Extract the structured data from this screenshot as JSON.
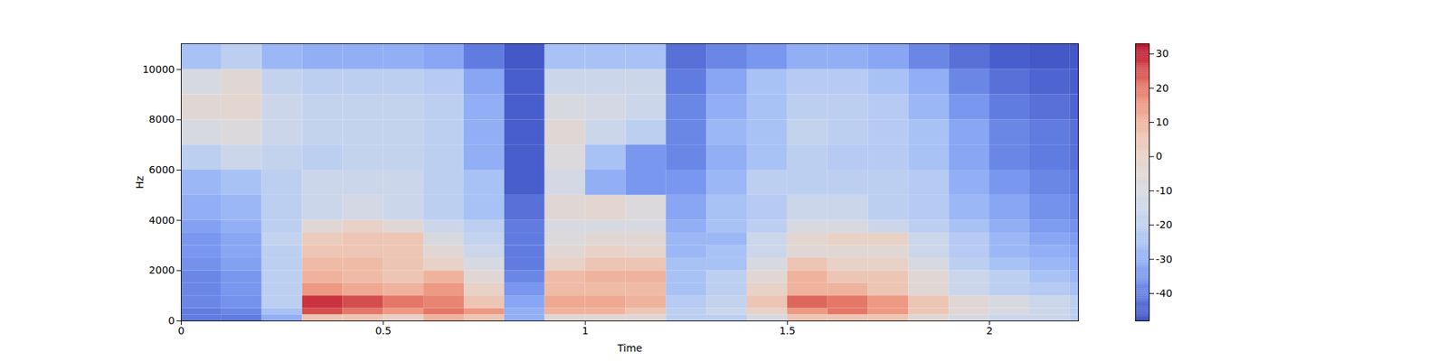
{
  "chart_data": {
    "type": "heatmap",
    "x_label": "Time",
    "y_label": "Hz",
    "xlim": [
      0,
      2.22
    ],
    "ylim": [
      0,
      11025
    ],
    "xticks": [
      0,
      0.5,
      1,
      1.5,
      2
    ],
    "yticks": [
      0,
      2000,
      4000,
      6000,
      8000,
      10000
    ],
    "x_edges": [
      0,
      0.1,
      0.2,
      0.3,
      0.4,
      0.5,
      0.6,
      0.7,
      0.8,
      0.9,
      1.0,
      1.1,
      1.2,
      1.3,
      1.4,
      1.5,
      1.6,
      1.7,
      1.8,
      1.9,
      2.0,
      2.1,
      2.2,
      2.22
    ],
    "y_edges": [
      0,
      250,
      500,
      1000,
      1500,
      2000,
      2500,
      3000,
      3500,
      4000,
      5000,
      6000,
      7000,
      8000,
      9000,
      10000,
      11025
    ],
    "values": [
      [
        -40,
        -40,
        -30,
        5,
        5,
        0,
        10,
        5,
        -30,
        -5,
        -5,
        -5,
        -20,
        -20,
        -10,
        5,
        5,
        5,
        -5,
        -10,
        -15,
        -15,
        -20
      ],
      [
        -40,
        -38,
        -25,
        25,
        20,
        15,
        20,
        15,
        -30,
        10,
        10,
        5,
        -20,
        -15,
        0,
        15,
        20,
        15,
        5,
        -5,
        -10,
        -15,
        -20
      ],
      [
        -38,
        -36,
        -20,
        28,
        25,
        20,
        18,
        5,
        -32,
        12,
        12,
        10,
        -22,
        -18,
        5,
        22,
        20,
        15,
        5,
        -5,
        -10,
        -15,
        -20
      ],
      [
        -38,
        -35,
        -20,
        15,
        12,
        10,
        15,
        0,
        -35,
        8,
        8,
        8,
        -25,
        -20,
        0,
        10,
        10,
        5,
        -5,
        -15,
        -20,
        -22,
        -25
      ],
      [
        -38,
        -35,
        -20,
        10,
        8,
        5,
        10,
        -5,
        -38,
        8,
        10,
        10,
        -25,
        -20,
        -5,
        10,
        5,
        5,
        -5,
        -15,
        -20,
        -25,
        -28
      ],
      [
        -36,
        -33,
        -20,
        8,
        8,
        5,
        0,
        -10,
        -40,
        0,
        5,
        5,
        -25,
        -25,
        -10,
        5,
        0,
        0,
        -10,
        -20,
        -25,
        -28,
        -30
      ],
      [
        -35,
        -32,
        -20,
        5,
        5,
        5,
        -5,
        -15,
        -40,
        -5,
        0,
        -2,
        -28,
        -25,
        -15,
        -5,
        -5,
        -5,
        -15,
        -22,
        -28,
        -30,
        -32
      ],
      [
        -35,
        -32,
        -18,
        3,
        5,
        5,
        -10,
        -18,
        -40,
        -8,
        -5,
        -5,
        -28,
        -28,
        -15,
        -3,
        0,
        0,
        -15,
        -22,
        -28,
        -32,
        -34
      ],
      [
        -33,
        -30,
        -20,
        -5,
        0,
        -5,
        -15,
        -20,
        -40,
        -10,
        -10,
        -10,
        -30,
        -25,
        -20,
        -10,
        -10,
        -15,
        -20,
        -25,
        -30,
        -34,
        -36
      ],
      [
        -30,
        -28,
        -20,
        -15,
        -12,
        -15,
        -20,
        -25,
        -42,
        -5,
        -3,
        -8,
        -32,
        -25,
        -22,
        -15,
        -15,
        -20,
        -22,
        -28,
        -32,
        -36,
        -38
      ],
      [
        -28,
        -25,
        -20,
        -15,
        -15,
        -15,
        -20,
        -25,
        -45,
        -12,
        -30,
        -35,
        -35,
        -28,
        -20,
        -20,
        -20,
        -20,
        -22,
        -30,
        -35,
        -38,
        -40
      ],
      [
        -20,
        -15,
        -18,
        -20,
        -18,
        -18,
        -20,
        -30,
        -45,
        -8,
        -25,
        -35,
        -38,
        -30,
        -25,
        -20,
        -22,
        -22,
        -25,
        -32,
        -38,
        -40,
        -42
      ],
      [
        -10,
        -8,
        -15,
        -18,
        -18,
        -18,
        -20,
        -30,
        -45,
        -5,
        -15,
        -20,
        -38,
        -28,
        -25,
        -18,
        -20,
        -22,
        -25,
        -32,
        -38,
        -40,
        -42
      ],
      [
        -5,
        -3,
        -15,
        -18,
        -18,
        -18,
        -20,
        -30,
        -45,
        -10,
        -12,
        -15,
        -38,
        -30,
        -25,
        -20,
        -20,
        -22,
        -28,
        -35,
        -40,
        -42,
        -44
      ],
      [
        -10,
        -5,
        -18,
        -20,
        -20,
        -20,
        -22,
        -32,
        -45,
        -15,
        -15,
        -15,
        -40,
        -32,
        -25,
        -22,
        -22,
        -25,
        -30,
        -38,
        -42,
        -44,
        -45
      ],
      [
        -25,
        -20,
        -28,
        -30,
        -30,
        -30,
        -32,
        -40,
        -46,
        -25,
        -25,
        -25,
        -42,
        -38,
        -35,
        -30,
        -30,
        -32,
        -38,
        -42,
        -45,
        -46,
        -46
      ]
    ],
    "colorbar": {
      "range": [
        -48,
        33
      ],
      "ticks": [
        -40,
        -30,
        -20,
        -10,
        0,
        10,
        20,
        30
      ]
    }
  }
}
